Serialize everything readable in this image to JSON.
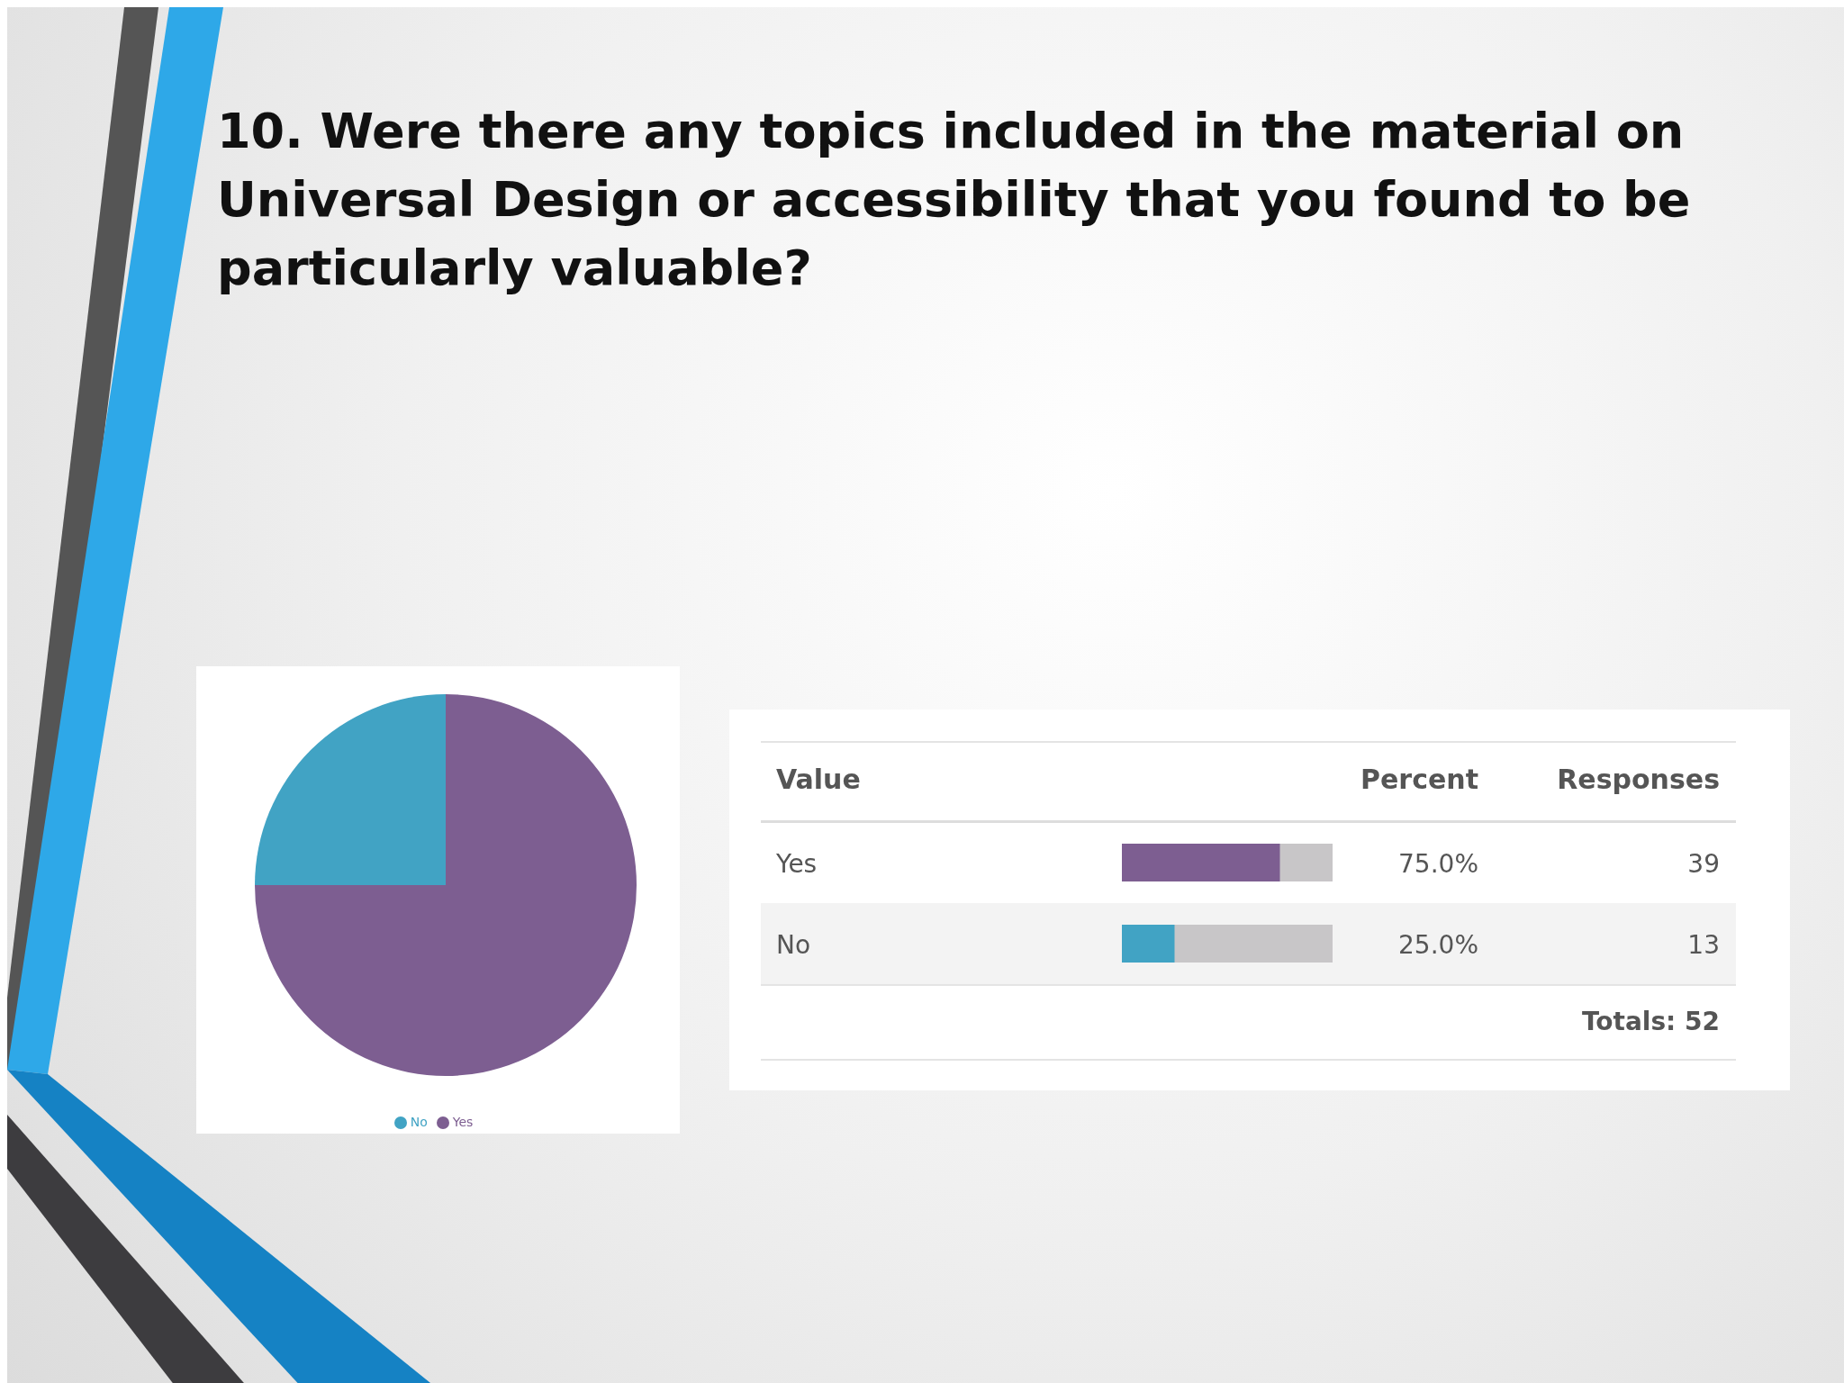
{
  "chart_data": [
    {
      "type": "pie",
      "title": "10. Were there any topics included in the material on Universal Design or accessibility that you found to be particularly valuable?",
      "categories": [
        "Yes",
        "No"
      ],
      "values": [
        75,
        25
      ],
      "colors": [
        "#7d5e91",
        "#41a3c4"
      ],
      "legend": "bottom"
    },
    {
      "type": "bar",
      "orientation": "horizontal",
      "categories": [
        "Yes",
        "No"
      ],
      "values": [
        75.0,
        25.0
      ],
      "colors": [
        "#7d5e91",
        "#41a3c4"
      ],
      "xlim": [
        0,
        100
      ],
      "tick_labels": false,
      "value_labels": [
        "75.0%",
        "25.0%"
      ],
      "annotations": [
        "Value",
        "Percent",
        "Responses",
        "39",
        "13",
        "Totals: 52"
      ]
    }
  ]
}
